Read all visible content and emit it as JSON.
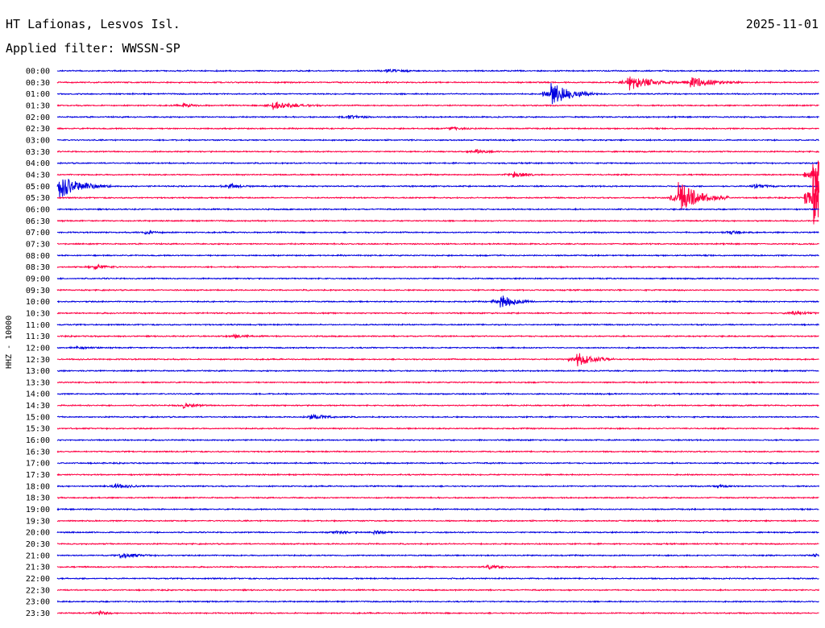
{
  "header": {
    "station": "HT Lafionas, Lesvos Isl.",
    "filter": "Applied filter: WWSSN-SP",
    "date": "2025-11-01"
  },
  "colors": {
    "blue": "#0000e0",
    "red": "#ff0044"
  },
  "chart_data": {
    "type": "line",
    "title": "HT Lafionas, Lesvos Isl.",
    "subtitle": "Applied filter: WWSSN-SP",
    "ylabel": "HHZ - 10000",
    "rows": [
      "00:00",
      "00:30",
      "01:00",
      "01:30",
      "02:00",
      "02:30",
      "03:00",
      "03:30",
      "04:00",
      "04:30",
      "05:00",
      "05:30",
      "06:00",
      "06:30",
      "07:00",
      "07:30",
      "08:00",
      "08:30",
      "09:00",
      "09:30",
      "10:00",
      "10:30",
      "11:00",
      "11:30",
      "12:00",
      "12:30",
      "13:00",
      "13:30",
      "14:00",
      "14:30",
      "15:00",
      "15:30",
      "16:00",
      "16:30",
      "17:00",
      "17:30",
      "18:00",
      "18:30",
      "19:00",
      "19:30",
      "20:00",
      "20:30",
      "21:00",
      "21:30",
      "22:00",
      "22:30",
      "23:00",
      "23:30"
    ],
    "row_minutes": 30,
    "color_cycle": [
      "blue",
      "red"
    ],
    "events": [
      {
        "row": 0,
        "minute": 13.0,
        "amp": 1.5,
        "dur": 1.5
      },
      {
        "row": 1,
        "minute": 22.5,
        "amp": 10,
        "dur": 2.0
      },
      {
        "row": 1,
        "minute": 25.0,
        "amp": 7,
        "dur": 2.0
      },
      {
        "row": 2,
        "minute": 19.5,
        "amp": 14,
        "dur": 1.8
      },
      {
        "row": 3,
        "minute": 8.5,
        "amp": 5,
        "dur": 2.0
      },
      {
        "row": 3,
        "minute": 5.0,
        "amp": 2,
        "dur": 1.0
      },
      {
        "row": 4,
        "minute": 11.5,
        "amp": 2.5,
        "dur": 1.0
      },
      {
        "row": 5,
        "minute": 15.5,
        "amp": 1.5,
        "dur": 1.5
      },
      {
        "row": 7,
        "minute": 16.5,
        "amp": 2.5,
        "dur": 1.0
      },
      {
        "row": 9,
        "minute": 18.0,
        "amp": 4,
        "dur": 1.0
      },
      {
        "row": 9,
        "minute": 29.8,
        "amp": 28,
        "dur": 1.2
      },
      {
        "row": 10,
        "minute": 0.1,
        "amp": 14,
        "dur": 2.0
      },
      {
        "row": 10,
        "minute": 6.8,
        "amp": 3,
        "dur": 1.0
      },
      {
        "row": 10,
        "minute": 27.5,
        "amp": 3,
        "dur": 1.0
      },
      {
        "row": 11,
        "minute": 24.5,
        "amp": 20,
        "dur": 2.0
      },
      {
        "row": 11,
        "minute": 29.8,
        "amp": 45,
        "dur": 1.0
      },
      {
        "row": 14,
        "minute": 3.5,
        "amp": 2,
        "dur": 1.0
      },
      {
        "row": 14,
        "minute": 26.5,
        "amp": 2,
        "dur": 1.0
      },
      {
        "row": 17,
        "minute": 1.5,
        "amp": 3,
        "dur": 1.0
      },
      {
        "row": 20,
        "minute": 17.5,
        "amp": 8,
        "dur": 1.3
      },
      {
        "row": 21,
        "minute": 29.0,
        "amp": 3,
        "dur": 1.2
      },
      {
        "row": 23,
        "minute": 7.0,
        "amp": 2,
        "dur": 1.0
      },
      {
        "row": 24,
        "minute": 0.8,
        "amp": 1.5,
        "dur": 1.0
      },
      {
        "row": 25,
        "minute": 20.5,
        "amp": 9,
        "dur": 1.5
      },
      {
        "row": 29,
        "minute": 5.0,
        "amp": 3,
        "dur": 1.0
      },
      {
        "row": 30,
        "minute": 10.0,
        "amp": 3,
        "dur": 1.5
      },
      {
        "row": 36,
        "minute": 2.2,
        "amp": 2.5,
        "dur": 1.5
      },
      {
        "row": 36,
        "minute": 26.0,
        "amp": 2,
        "dur": 1.0
      },
      {
        "row": 40,
        "minute": 11.0,
        "amp": 2,
        "dur": 1.0
      },
      {
        "row": 40,
        "minute": 12.5,
        "amp": 2,
        "dur": 1.0
      },
      {
        "row": 42,
        "minute": 2.5,
        "amp": 3,
        "dur": 1.5
      },
      {
        "row": 42,
        "minute": 29.8,
        "amp": 2,
        "dur": 1.0
      },
      {
        "row": 43,
        "minute": 17.0,
        "amp": 2.5,
        "dur": 1.0
      },
      {
        "row": 47,
        "minute": 1.7,
        "amp": 2.5,
        "dur": 0.6
      }
    ]
  }
}
